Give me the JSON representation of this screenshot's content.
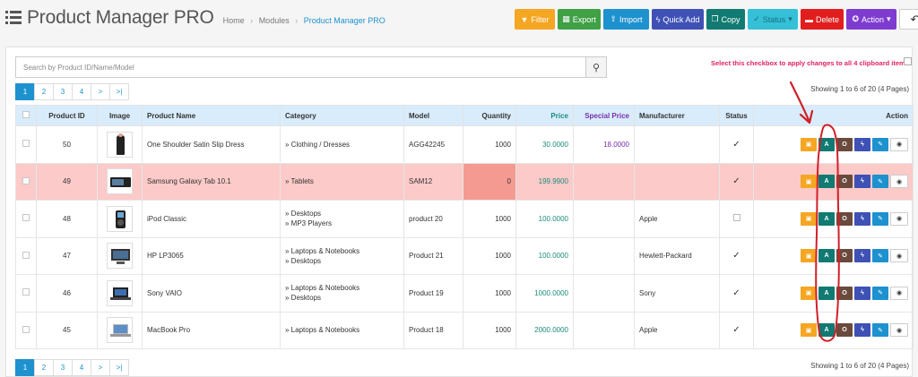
{
  "header": {
    "title": "Product Manager PRO",
    "breadcrumb": [
      "Home",
      "Modules",
      "Product Manager PRO"
    ],
    "separator": "›"
  },
  "toolbar": {
    "filter": "Filter",
    "export": "Export",
    "import": "Import",
    "quick_add": "Quick Add",
    "copy": "Copy",
    "status": "Status",
    "delete": "Delete",
    "action": "Action",
    "back_icon": "↶"
  },
  "search": {
    "placeholder": "Search by Product ID/Name/Model"
  },
  "clipboard_note": "Select this checkbox to apply changes to all 4 clipboard items",
  "pagination": {
    "pages": [
      "1",
      "2",
      "3",
      "4",
      ">",
      ">|"
    ],
    "active": "1"
  },
  "showing": "Showing 1 to 6 of 20 (4 Pages)",
  "table": {
    "columns": [
      "Product ID",
      "Image",
      "Product Name",
      "Category",
      "Model",
      "Quantity",
      "Price",
      "Special Price",
      "Manufacturer",
      "Status",
      "Action"
    ],
    "rows": [
      {
        "id": "50",
        "name": "One Shoulder Satin Slip Dress",
        "category": [
          "Clothing / Dresses"
        ],
        "model": "AGG42245",
        "quantity": "1000",
        "price": "30.0000",
        "special": "18.0000",
        "manufacturer": "",
        "status": "✓",
        "image": "dress"
      },
      {
        "id": "49",
        "name": "Samsung Galaxy Tab 10.1",
        "category": [
          "Tablets"
        ],
        "model": "SAM12",
        "quantity": "0",
        "price": "199.9900",
        "special": "",
        "manufacturer": "",
        "status": "✓",
        "image": "tablet"
      },
      {
        "id": "48",
        "name": "iPod Classic",
        "category": [
          "Desktops",
          "MP3 Players"
        ],
        "model": "product 20",
        "quantity": "1000",
        "price": "100.0000",
        "special": "",
        "manufacturer": "Apple",
        "status": "",
        "image": "ipod"
      },
      {
        "id": "47",
        "name": "HP LP3065",
        "category": [
          "Laptops & Notebooks",
          "Desktops"
        ],
        "model": "Product 21",
        "quantity": "1000",
        "price": "100.0000",
        "special": "",
        "manufacturer": "Hewlett-Packard",
        "status": "✓",
        "image": "monitor"
      },
      {
        "id": "46",
        "name": "Sony VAIO",
        "category": [
          "Laptops & Notebooks",
          "Desktops"
        ],
        "model": "Product 19",
        "quantity": "1000",
        "price": "1000.0000",
        "special": "",
        "manufacturer": "Sony",
        "status": "✓",
        "image": "laptop"
      },
      {
        "id": "45",
        "name": "MacBook Pro",
        "category": [
          "Laptops & Notebooks"
        ],
        "model": "Product 18",
        "quantity": "1000",
        "price": "2000.0000",
        "special": "",
        "manufacturer": "Apple",
        "status": "✓",
        "image": "macbook"
      }
    ],
    "action_buttons": [
      "image-icon",
      "A",
      "O",
      "bolt-icon",
      "pencil-icon",
      "eye-icon"
    ]
  },
  "colors": {
    "accent": "#1e91cf",
    "danger_row": "#fccac8",
    "zero_qty": "#f49a91",
    "annotation": "#d0202a"
  }
}
